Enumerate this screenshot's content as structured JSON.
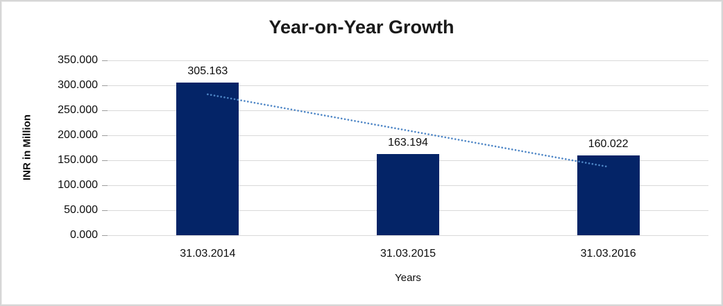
{
  "chart_data": {
    "type": "bar",
    "title": "Year-on-Year Growth",
    "categories": [
      "31.03.2014",
      "31.03.2015",
      "31.03.2016"
    ],
    "values": [
      305.163,
      163.194,
      160.022
    ],
    "data_labels": [
      "305.163",
      "163.194",
      "160.022"
    ],
    "xlabel": "Years",
    "ylabel": "INR in Million",
    "ylim": [
      0,
      350
    ],
    "ytick_step": 50,
    "ytick_labels": [
      "0.000",
      "50.000",
      "100.000",
      "150.000",
      "200.000",
      "250.000",
      "300.000",
      "350.000"
    ],
    "grid": "horizontal-on",
    "legend": "none",
    "colors": {
      "bar": "#042467",
      "trendline": "#4e86c6",
      "gridline": "#d9d9d9",
      "tick": "#9c9c9c",
      "text": "#0d0d0d"
    },
    "trendline": {
      "type": "linear",
      "style": "dotted",
      "series": "values"
    }
  }
}
